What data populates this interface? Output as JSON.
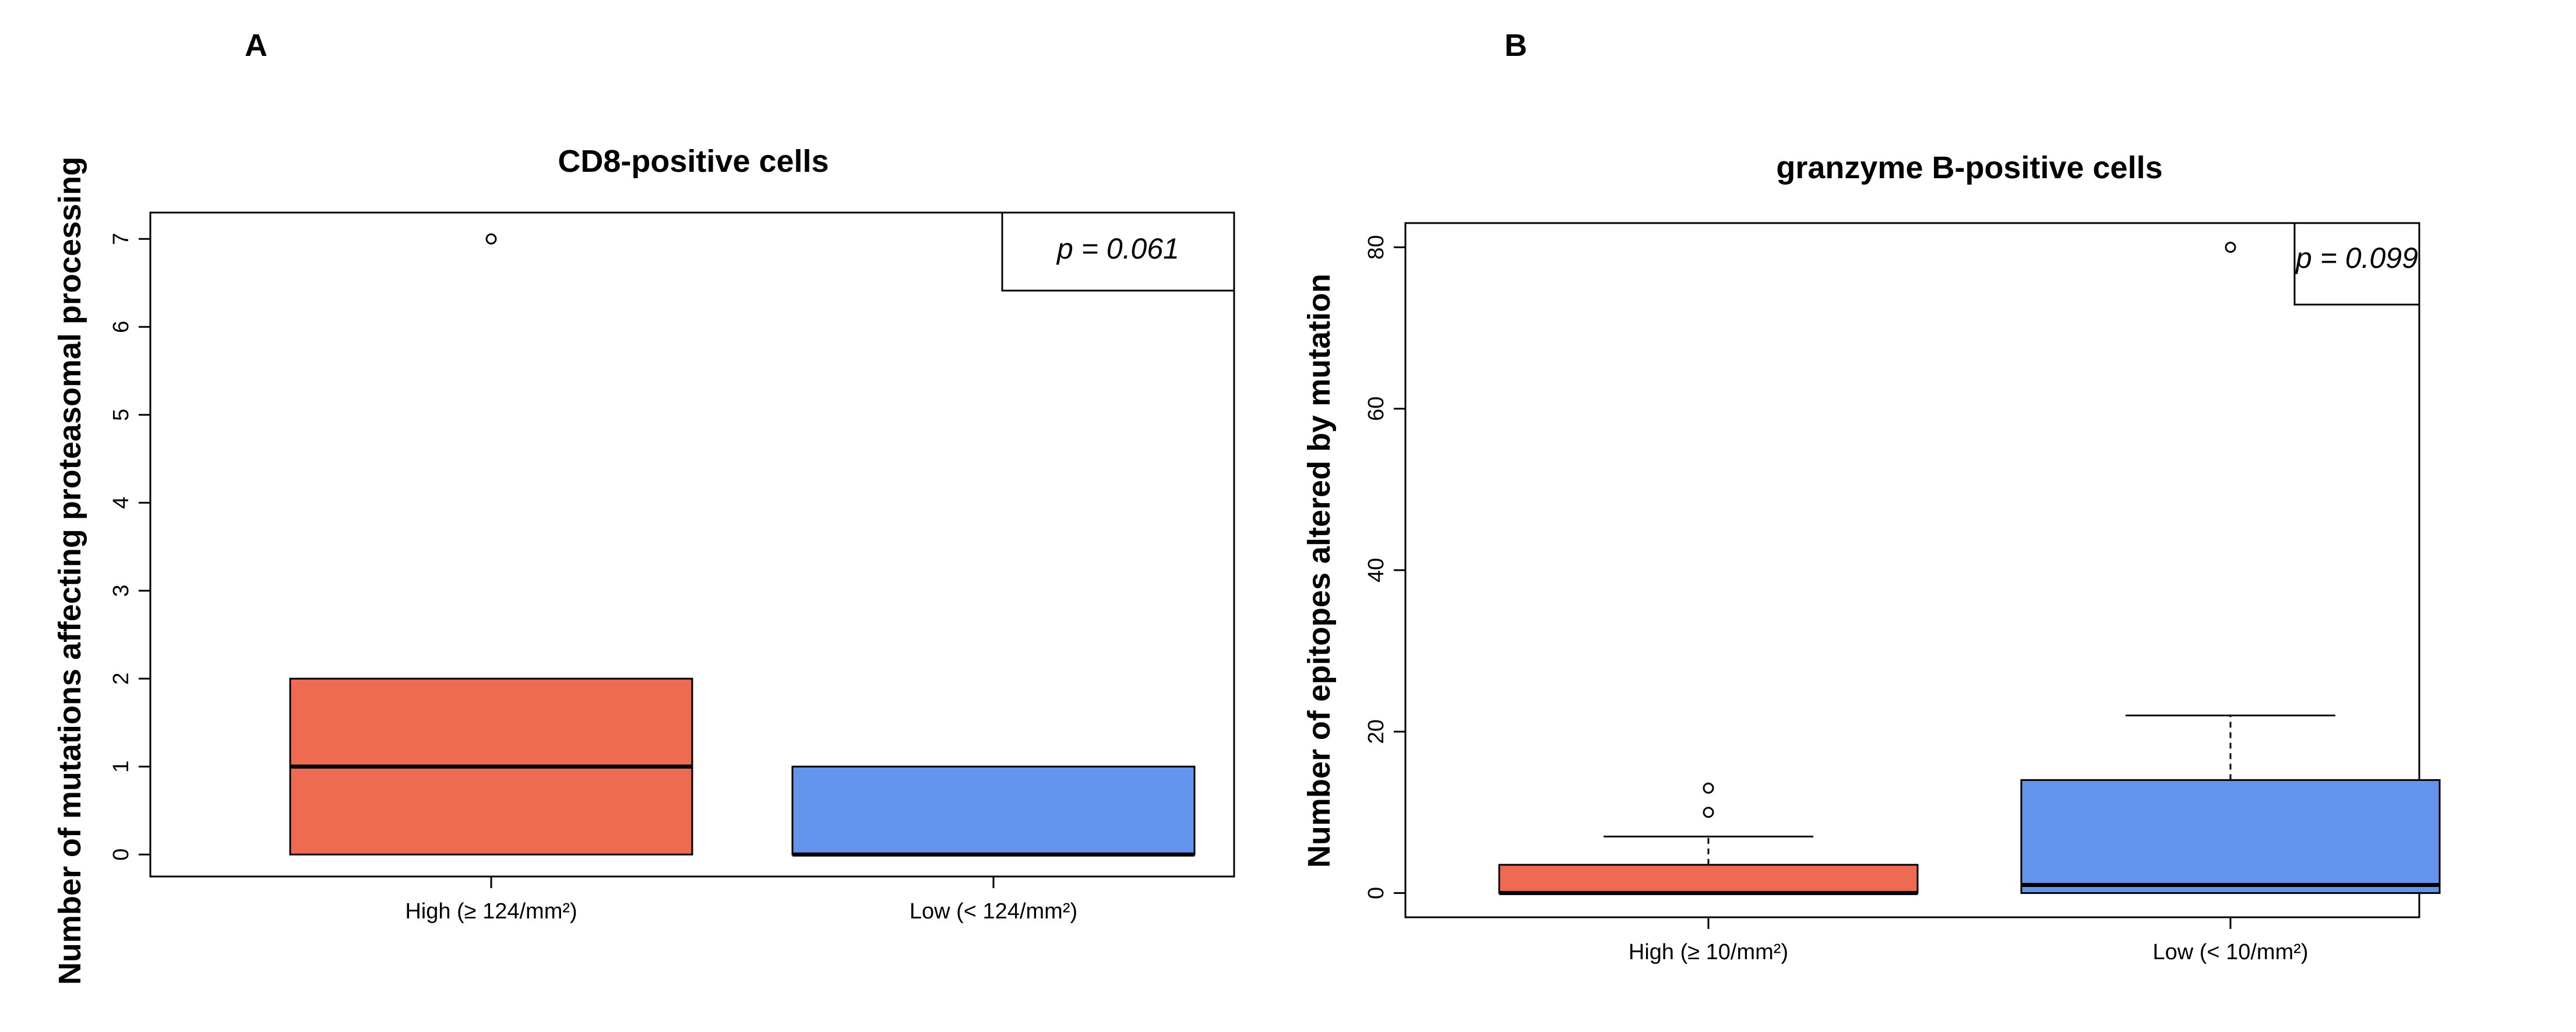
{
  "chart_data": [
    {
      "panel": "A",
      "type": "box",
      "title": "CD8-positive cells",
      "xlabel": "",
      "ylabel": "Number of mutations affecting proteasomal processing",
      "ylim": [
        -0.25,
        7.3
      ],
      "yticks": [
        0,
        1,
        2,
        3,
        4,
        5,
        6,
        7
      ],
      "pvalue": "p = 0.061",
      "boxes": [
        {
          "category": "High (≥ 124/mm²)",
          "color": "#ee6a50",
          "q1": 0,
          "median": 1,
          "q3": 2,
          "whisker_low": 0,
          "whisker_high": 2,
          "outliers": [
            7
          ]
        },
        {
          "category": "Low (< 124/mm²)",
          "color": "#6495ed",
          "q1": 0,
          "median": 0,
          "q3": 1,
          "whisker_low": 0,
          "whisker_high": 1,
          "outliers": []
        }
      ]
    },
    {
      "panel": "B",
      "type": "box",
      "title": "granzyme B-positive cells",
      "xlabel": "",
      "ylabel": "Number of epitopes altered by mutation",
      "ylim": [
        -3,
        83
      ],
      "yticks": [
        0,
        20,
        40,
        60,
        80
      ],
      "pvalue": "p = 0.099",
      "boxes": [
        {
          "category": "High (≥ 10/mm²)",
          "color": "#ee6a50",
          "q1": 0,
          "median": 0,
          "q3": 3.5,
          "whisker_low": 0,
          "whisker_high": 7,
          "outliers": [
            10,
            13
          ]
        },
        {
          "category": "Low (< 10/mm²)",
          "color": "#6495ed",
          "q1": 0,
          "median": 1,
          "q3": 14,
          "whisker_low": 0,
          "whisker_high": 22,
          "outliers": [
            80
          ]
        }
      ]
    }
  ]
}
